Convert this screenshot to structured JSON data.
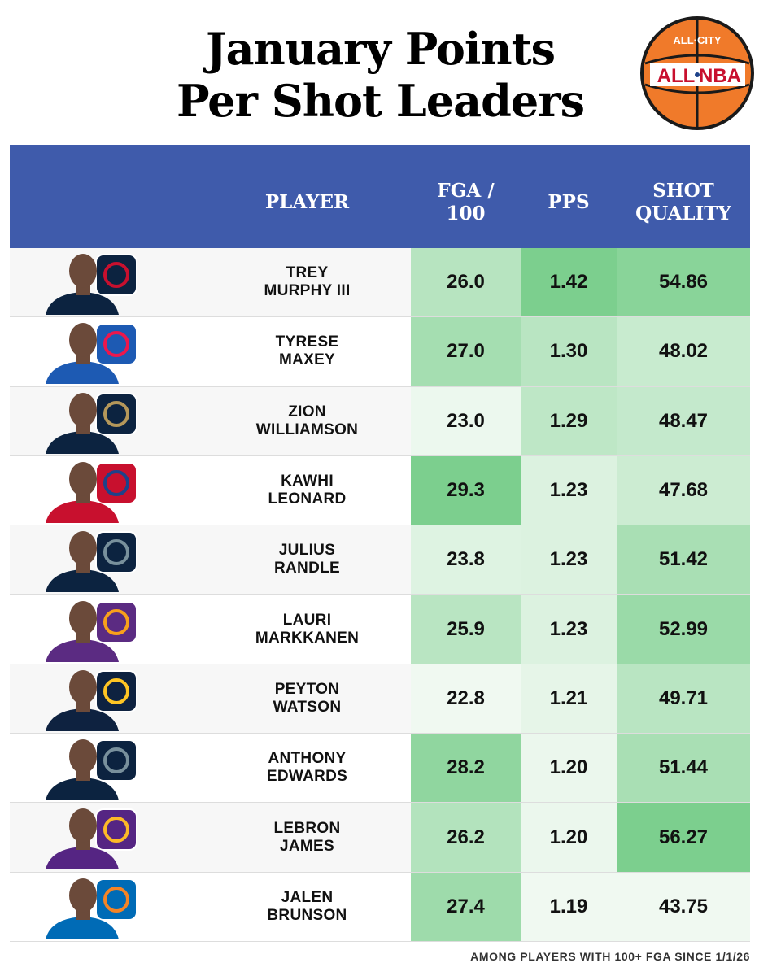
{
  "header": {
    "title_lines": [
      "January Points",
      "Per Shot Leaders"
    ],
    "logo": {
      "top": "ALL·CITY",
      "left": "ALL",
      "right": "NBA"
    }
  },
  "table": {
    "columns": [
      [
        "PLAYER"
      ],
      [
        "FGA /",
        "100"
      ],
      [
        "PPS"
      ],
      [
        "SHOT",
        "QUALITY"
      ]
    ],
    "rows": [
      [
        [
          "TREY",
          "MURPHY III"
        ],
        "26.0",
        "1.42",
        "54.86"
      ],
      [
        [
          "TYRESE",
          "MAXEY"
        ],
        "27.0",
        "1.30",
        "48.02"
      ],
      [
        [
          "ZION",
          "WILLIAMSON"
        ],
        "23.0",
        "1.29",
        "48.47"
      ],
      [
        [
          "KAWHI",
          "LEONARD"
        ],
        "29.3",
        "1.23",
        "47.68"
      ],
      [
        [
          "JULIUS",
          "RANDLE"
        ],
        "23.8",
        "1.23",
        "51.42"
      ],
      [
        [
          "LAURI",
          "MARKKANEN"
        ],
        "25.9",
        "1.23",
        "52.99"
      ],
      [
        [
          "PEYTON",
          "WATSON"
        ],
        "22.8",
        "1.21",
        "49.71"
      ],
      [
        [
          "ANTHONY",
          "EDWARDS"
        ],
        "28.2",
        "1.20",
        "51.44"
      ],
      [
        [
          "LEBRON",
          "JAMES"
        ],
        "26.2",
        "1.20",
        "56.27"
      ],
      [
        [
          "JALEN",
          "BRUNSON"
        ],
        "27.4",
        "1.19",
        "43.75"
      ]
    ]
  },
  "footer": {
    "note": "AMONG PLAYERS WITH 100+ FGA SINCE 1/1/26"
  }
}
